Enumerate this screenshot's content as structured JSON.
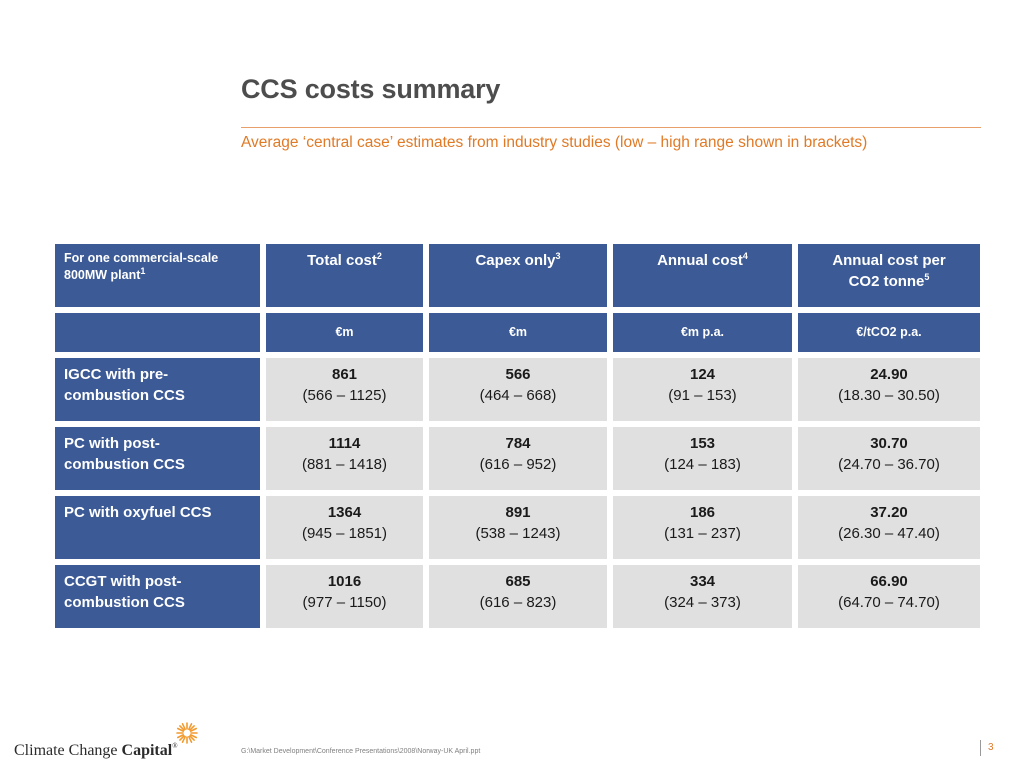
{
  "slide": {
    "title": "CCS costs summary",
    "subtitle": "Average ‘central case’ estimates from industry studies (low – high range shown in brackets)"
  },
  "table": {
    "corner_label_line1": "For one commercial-scale",
    "corner_label_line2": "800MW plant",
    "corner_label_sup": "1",
    "columns": [
      {
        "label": "Total cost",
        "sup": "2",
        "unit": "€m"
      },
      {
        "label": "Capex only",
        "sup": "3",
        "unit": "€m"
      },
      {
        "label": "Annual cost",
        "sup": "4",
        "unit": "€m p.a."
      },
      {
        "label": "Annual cost per CO2 tonne",
        "label_line1": "Annual cost per",
        "label_line2": "CO2 tonne",
        "sup": "5",
        "unit": "€/tCO2 p.a."
      }
    ],
    "rows": [
      {
        "label_line1": "IGCC with pre-",
        "label_line2": "combustion CCS",
        "cells": [
          {
            "value": "861",
            "range": "(566 – 1125)"
          },
          {
            "value": "566",
            "range": "(464 – 668)"
          },
          {
            "value": "124",
            "range": "(91 – 153)"
          },
          {
            "value": "24.90",
            "range": "(18.30 – 30.50)"
          }
        ]
      },
      {
        "label_line1": "PC with post-",
        "label_line2": "combustion CCS",
        "cells": [
          {
            "value": "1114",
            "range": "(881 – 1418)"
          },
          {
            "value": "784",
            "range": "(616 – 952)"
          },
          {
            "value": "153",
            "range": "(124 – 183)"
          },
          {
            "value": "30.70",
            "range": "(24.70 – 36.70)"
          }
        ]
      },
      {
        "label_line1": "PC with oxyfuel CCS",
        "label_line2": "",
        "cells": [
          {
            "value": "1364",
            "range": "(945 – 1851)"
          },
          {
            "value": "891",
            "range": "(538 – 1243)"
          },
          {
            "value": "186",
            "range": "(131 – 237)"
          },
          {
            "value": "37.20",
            "range": "(26.30 – 47.40)"
          }
        ]
      },
      {
        "label_line1": "CCGT with post-",
        "label_line2": "combustion CCS",
        "cells": [
          {
            "value": "1016",
            "range": "(977 – 1150)"
          },
          {
            "value": "685",
            "range": "(616 – 823)"
          },
          {
            "value": "334",
            "range": "(324 – 373)"
          },
          {
            "value": "66.90",
            "range": "(64.70 – 74.70)"
          }
        ]
      }
    ]
  },
  "footer": {
    "file_path": "G:\\Market Development\\Conference Presentations\\2008\\Norway-UK April.ppt",
    "logo_text_regular": "Climate Change ",
    "logo_text_bold": "Capital",
    "logo_registered": "®",
    "logo_icon": "sun-burst-icon",
    "page_number": "3"
  },
  "colors": {
    "header_blue": "#3c5a96",
    "cell_grey": "#e0e0e0",
    "accent_orange": "#e07a26",
    "title_grey": "#4d4d4d"
  }
}
